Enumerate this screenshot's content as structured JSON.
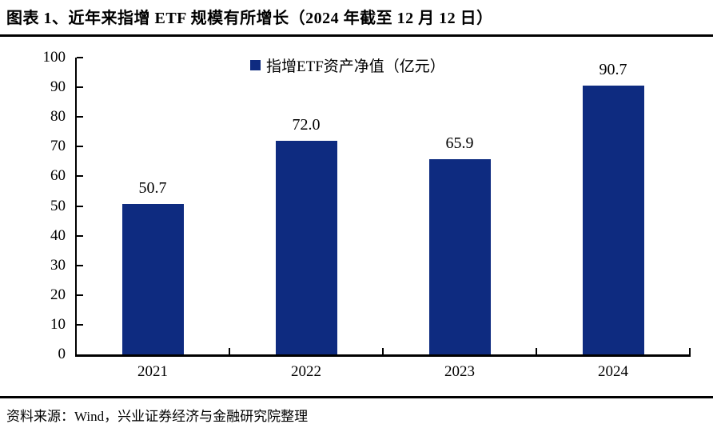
{
  "page": {
    "title": "图表 1、近年来指增 ETF 规模有所增长（2024 年截至 12 月 12 日）",
    "source_note": "资料来源：Wind，兴业证券经济与金融研究院整理"
  },
  "chart_data": {
    "type": "bar",
    "title": "图表 1、近年来指增 ETF 规模有所增长（2024 年截至 12 月 12 日）",
    "legend": [
      "指增ETF资产净值（亿元）"
    ],
    "legend_position": "top-center",
    "categories": [
      "2021",
      "2022",
      "2023",
      "2024"
    ],
    "values": [
      50.7,
      72.0,
      65.9,
      90.7
    ],
    "data_labels": [
      "50.7",
      "72.0",
      "65.9",
      "90.7"
    ],
    "ylabel": "",
    "xlabel": "",
    "ylim": [
      0,
      100
    ],
    "yticks": [
      0,
      10,
      20,
      30,
      40,
      50,
      60,
      70,
      80,
      90,
      100
    ],
    "grid": false,
    "colors": {
      "bar": "#0E2B80",
      "axis": "#000000",
      "text": "#000000"
    }
  }
}
